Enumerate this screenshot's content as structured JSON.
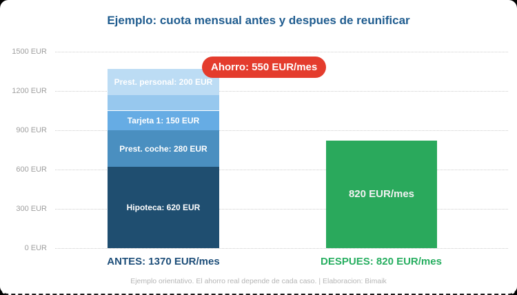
{
  "title": {
    "text": "Ejemplo: cuota mensual antes y despues de reunificar",
    "color": "#1f5c8f"
  },
  "chart_data": {
    "type": "bar",
    "stacked": true,
    "title": "Ejemplo: cuota mensual antes y despues de reunificar",
    "categories": [
      "ANTES",
      "DESPUES"
    ],
    "category_footer_labels": [
      {
        "text": "ANTES: 1370 EUR/mes",
        "color": "#1d4e79"
      },
      {
        "text": "DESPUES: 820 EUR/mes",
        "color": "#27ae60"
      }
    ],
    "y_axis": {
      "ticks": [
        0,
        300,
        600,
        900,
        1200,
        1500
      ],
      "tick_labels": [
        "0 EUR",
        "300 EUR",
        "600 EUR",
        "900 EUR",
        "1200 EUR",
        "1500 EUR"
      ],
      "max": 1500,
      "label_color": "#9e9e9e",
      "gridline_color": "#cccccc",
      "grid": "dotted"
    },
    "series_antes": {
      "total": 1370,
      "segments_bottom_to_top": [
        {
          "label": "Hipoteca: 620 EUR",
          "value": 620,
          "color": "#1f4e70"
        },
        {
          "label": "Prest. coche: 280 EUR",
          "value": 280,
          "color": "#4a8fc0"
        },
        {
          "label": "Tarjeta 1: 150 EUR",
          "value": 150,
          "color": "#66ace4"
        },
        {
          "label": "",
          "value": 120,
          "color": "#97c8ee"
        },
        {
          "label": "Prest. personal: 200 EUR",
          "value": 200,
          "color": "#bcdcf4"
        }
      ]
    },
    "series_despues": {
      "total": 820,
      "segments_bottom_to_top": [
        {
          "label": "820 EUR/mes",
          "value": 820,
          "color": "#2aa95c"
        }
      ]
    },
    "annotation": {
      "text": "Ahorro: 550 EUR/mes",
      "value": 550,
      "background_color": "#e43c2d",
      "text_color": "#ffffff"
    }
  },
  "footer": {
    "text": "Ejemplo orientativo. El ahorro real depende de cada caso. | Elaboracion: Bimaik",
    "color": "#b5b5b5"
  }
}
